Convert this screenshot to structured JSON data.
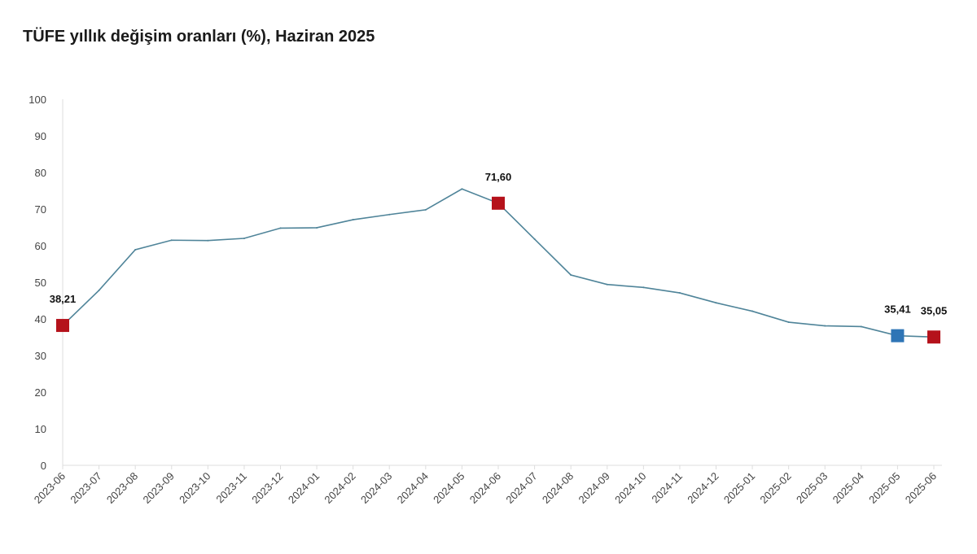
{
  "chart_data": {
    "type": "line",
    "title": "TÜFE yıllık değişim oranları (%), Haziran 2025",
    "xlabel": "",
    "ylabel": "",
    "ylim": [
      0,
      100
    ],
    "yticks": [
      0,
      10,
      20,
      30,
      40,
      50,
      60,
      70,
      80,
      90,
      100
    ],
    "grid": false,
    "legend": "none",
    "categories": [
      "2023-06",
      "2023-07",
      "2023-08",
      "2023-09",
      "2023-10",
      "2023-11",
      "2023-12",
      "2024-01",
      "2024-02",
      "2024-03",
      "2024-04",
      "2024-05",
      "2024-06",
      "2024-07",
      "2024-08",
      "2024-09",
      "2024-10",
      "2024-11",
      "2024-12",
      "2025-01",
      "2025-02",
      "2025-03",
      "2025-04",
      "2025-05",
      "2025-06"
    ],
    "series": [
      {
        "values": [
          38.21,
          47.8,
          58.9,
          61.5,
          61.4,
          62.0,
          64.8,
          64.9,
          67.1,
          68.5,
          69.8,
          75.5,
          71.6,
          61.8,
          52.0,
          49.4,
          48.6,
          47.1,
          44.4,
          42.1,
          39.1,
          38.1,
          37.9,
          35.41,
          35.05
        ]
      }
    ],
    "markers": [
      {
        "category": "2023-06",
        "label": "38,21",
        "color": "#b5121b"
      },
      {
        "category": "2024-06",
        "label": "71,60",
        "color": "#b5121b"
      },
      {
        "category": "2025-05",
        "label": "35,41",
        "color": "#2e75b6"
      },
      {
        "category": "2025-06",
        "label": "35,05",
        "color": "#b5121b"
      }
    ],
    "line_color": "#4f8499"
  }
}
